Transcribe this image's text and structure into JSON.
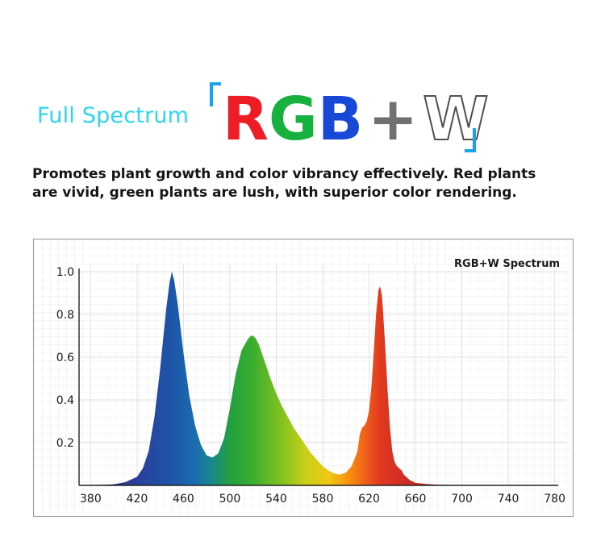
{
  "header": {
    "subtitle": "Full Spectrum",
    "logo": {
      "r": "R",
      "g": "G",
      "b": "B",
      "plus": "+",
      "w": "W"
    },
    "description": "Promotes plant growth and color vibrancy effectively. Red plants are vivid, green plants are lush, with superior color rendering."
  },
  "colors": {
    "accent_cyan": "#2fd6f0",
    "bracket_blue": "#1aa3e8",
    "logo_red": "#ee1c25",
    "logo_green": "#17b140",
    "logo_blue": "#1748d6",
    "logo_plus_gray": "#707070"
  },
  "chart_data": {
    "type": "area",
    "title": "RGB+W Spectrum",
    "xlabel": "",
    "ylabel": "",
    "xlim": [
      370,
      790
    ],
    "ylim": [
      0,
      1.0
    ],
    "x_ticks": [
      380,
      420,
      460,
      500,
      540,
      580,
      620,
      660,
      700,
      740,
      780
    ],
    "y_ticks": [
      0.2,
      0.4,
      0.6,
      0.8,
      1.0
    ],
    "grid": true,
    "fill": "wavelength-gradient",
    "series": [
      {
        "x": [
          380,
          400,
          410,
          420,
          425,
          430,
          435,
          440,
          445,
          448,
          450,
          452,
          455,
          460,
          465,
          470,
          475,
          480,
          485,
          490,
          495,
          500,
          505,
          510,
          515,
          518,
          520,
          522,
          525,
          530,
          535,
          540,
          545,
          550,
          555,
          560,
          565,
          570,
          575,
          580,
          585,
          590,
          595,
          600,
          605,
          610,
          612,
          614,
          616,
          618,
          620,
          622,
          624,
          626,
          628,
          629,
          630,
          631,
          632,
          634,
          636,
          638,
          640,
          642,
          644,
          646,
          648,
          650,
          655,
          660,
          670,
          680,
          700,
          720,
          780
        ],
        "values": [
          0.0,
          0.005,
          0.015,
          0.04,
          0.08,
          0.16,
          0.32,
          0.55,
          0.82,
          0.95,
          1.0,
          0.96,
          0.85,
          0.62,
          0.42,
          0.28,
          0.19,
          0.14,
          0.13,
          0.15,
          0.22,
          0.36,
          0.52,
          0.63,
          0.68,
          0.7,
          0.7,
          0.69,
          0.66,
          0.58,
          0.5,
          0.43,
          0.37,
          0.32,
          0.27,
          0.23,
          0.19,
          0.15,
          0.12,
          0.09,
          0.07,
          0.055,
          0.05,
          0.06,
          0.09,
          0.16,
          0.24,
          0.27,
          0.28,
          0.3,
          0.35,
          0.46,
          0.62,
          0.8,
          0.91,
          0.93,
          0.92,
          0.89,
          0.82,
          0.64,
          0.44,
          0.27,
          0.16,
          0.11,
          0.09,
          0.08,
          0.07,
          0.05,
          0.025,
          0.012,
          0.006,
          0.003,
          0.001,
          0.0,
          0.0
        ]
      }
    ]
  }
}
